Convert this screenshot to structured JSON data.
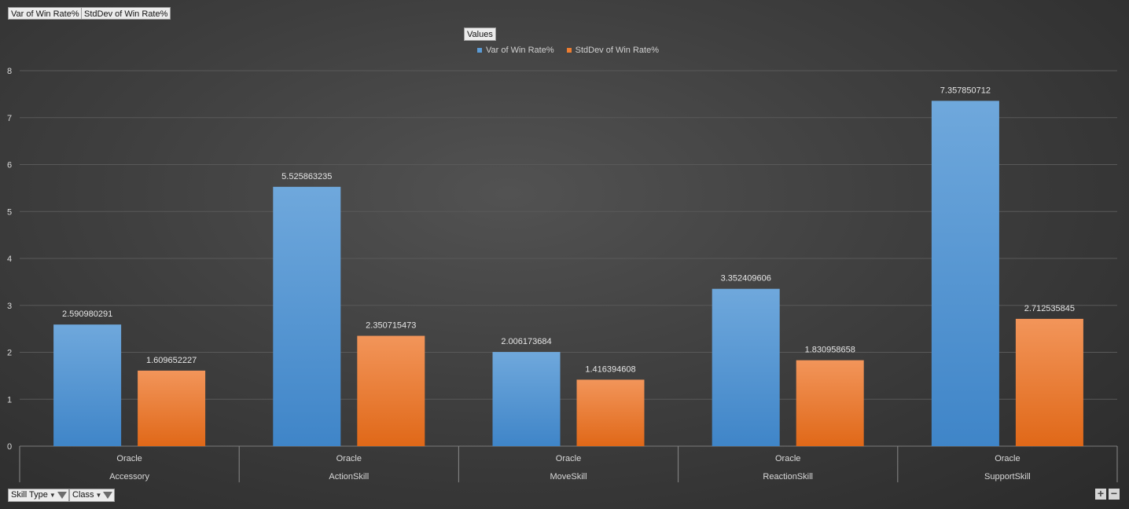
{
  "field_buttons": {
    "var": "Var of Win Rate%",
    "stddev": "StdDev of Win Rate%"
  },
  "values_button": "Values",
  "filters": {
    "skill_type": "Skill Type",
    "class": "Class"
  },
  "zoom": {
    "plus": "+",
    "minus": "−"
  },
  "icons": {
    "filter": "funnel-icon",
    "dropdown": "caret-down-icon"
  },
  "colors": {
    "series1": "#5b9bd5",
    "series2": "#ed7d31",
    "background": "#3f3f3f",
    "grid": "#595959"
  },
  "chart_data": {
    "type": "bar",
    "categories": [
      "Accessory",
      "ActionSkill",
      "MoveSkill",
      "ReactionSkill",
      "SupportSkill"
    ],
    "subcategories": [
      "Oracle",
      "Oracle",
      "Oracle",
      "Oracle",
      "Oracle"
    ],
    "series": [
      {
        "name": "Var of Win Rate%",
        "values": [
          2.590980291,
          5.525863235,
          2.006173684,
          3.352409606,
          7.357850712
        ]
      },
      {
        "name": "StdDev of Win Rate%",
        "values": [
          1.609652227,
          2.350715473,
          1.416394608,
          1.830958658,
          2.712535845
        ]
      }
    ],
    "data_labels": [
      [
        "2.590980291",
        "5.525863235",
        "2.006173684",
        "3.352409606",
        "7.357850712"
      ],
      [
        "1.609652227",
        "2.350715473",
        "1.416394608",
        "1.830958658",
        "2.712535845"
      ]
    ],
    "y_ticks": [
      0,
      1,
      2,
      3,
      4,
      5,
      6,
      7,
      8
    ],
    "ylim": [
      0,
      8
    ],
    "grid": true,
    "legend": "top-center"
  }
}
